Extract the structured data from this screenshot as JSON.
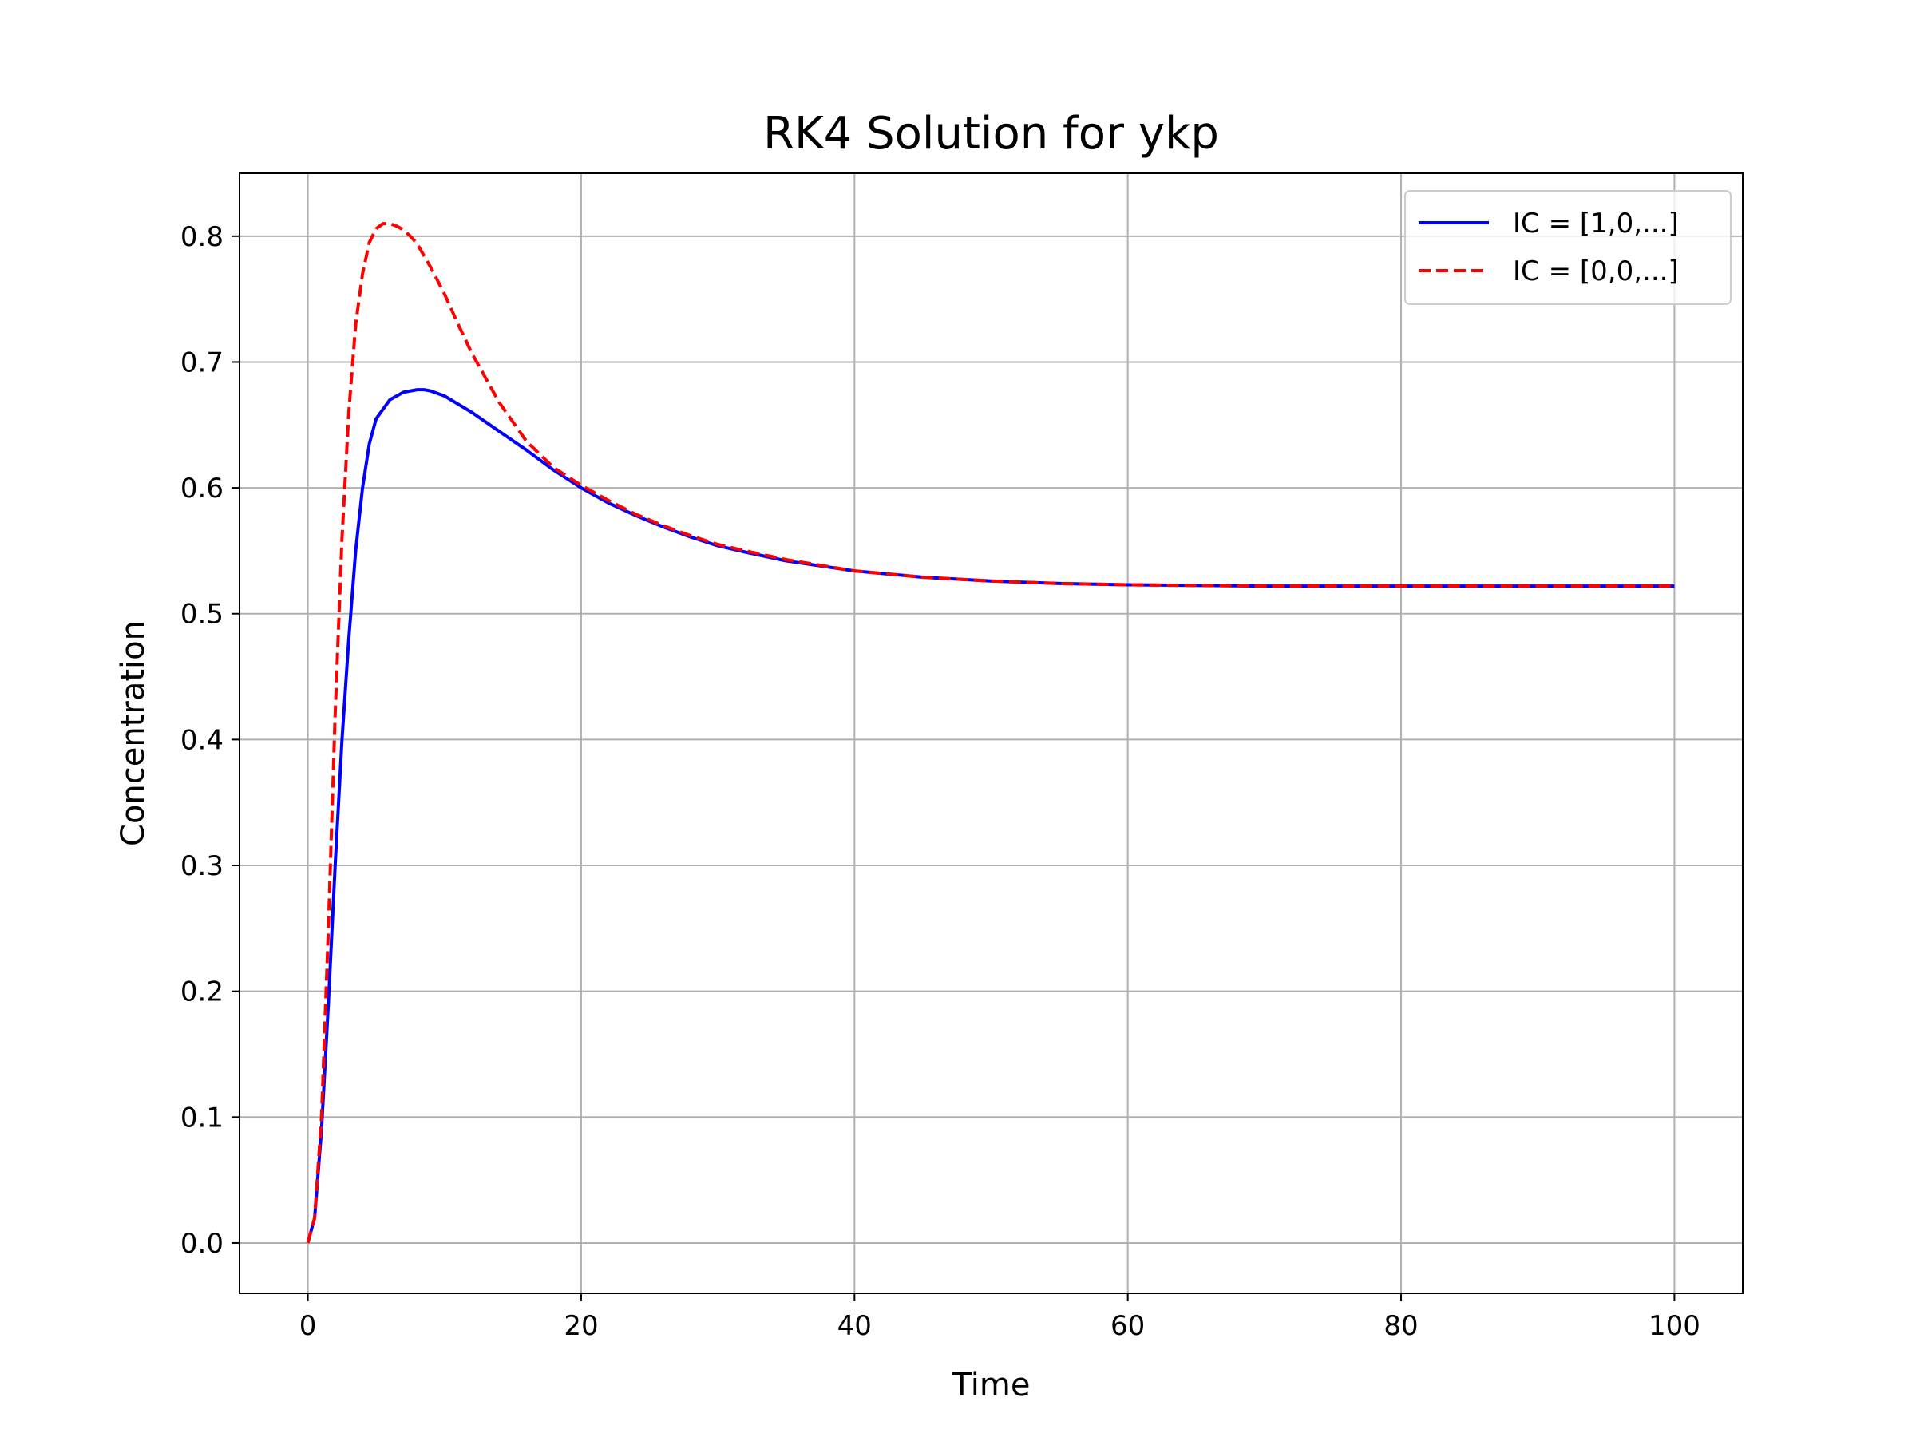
{
  "chart_data": {
    "type": "line",
    "title": "RK4 Solution for ykp",
    "xlabel": "Time",
    "ylabel": "Concentration",
    "xlim": [
      -5,
      105
    ],
    "ylim": [
      -0.04,
      0.85
    ],
    "xticks": [
      0,
      20,
      40,
      60,
      80,
      100
    ],
    "xtick_labels": [
      "0",
      "20",
      "40",
      "60",
      "80",
      "100"
    ],
    "yticks": [
      0.0,
      0.1,
      0.2,
      0.3,
      0.4,
      0.5,
      0.6,
      0.7,
      0.8
    ],
    "ytick_labels": [
      "0.0",
      "0.1",
      "0.2",
      "0.3",
      "0.4",
      "0.5",
      "0.6",
      "0.7",
      "0.8"
    ],
    "grid": true,
    "legend_position": "top-right",
    "series": [
      {
        "name": "IC = [1,0,...]",
        "color": "#0000ff",
        "style": "solid",
        "x": [
          0,
          0.5,
          1,
          1.5,
          2,
          2.5,
          3,
          3.5,
          4,
          4.5,
          5,
          6,
          7,
          8,
          8.5,
          9,
          10,
          12,
          14,
          16,
          18,
          20,
          22,
          24,
          26,
          28,
          30,
          32,
          35,
          40,
          45,
          50,
          55,
          60,
          70,
          80,
          90,
          100
        ],
        "y": [
          0.0,
          0.02,
          0.09,
          0.19,
          0.3,
          0.4,
          0.48,
          0.55,
          0.6,
          0.635,
          0.655,
          0.67,
          0.676,
          0.678,
          0.678,
          0.677,
          0.673,
          0.66,
          0.645,
          0.63,
          0.614,
          0.6,
          0.588,
          0.578,
          0.569,
          0.561,
          0.554,
          0.549,
          0.542,
          0.534,
          0.529,
          0.526,
          0.524,
          0.523,
          0.522,
          0.522,
          0.522,
          0.522
        ]
      },
      {
        "name": "IC = [0,0,...]",
        "color": "#ff0000",
        "style": "dashed",
        "x": [
          0,
          0.5,
          1,
          1.5,
          2,
          2.5,
          3,
          3.5,
          4,
          4.5,
          5,
          5.5,
          6,
          6.5,
          7,
          7.5,
          8,
          9,
          10,
          11,
          12,
          14,
          16,
          18,
          20,
          22,
          24,
          26,
          28,
          30,
          32,
          35,
          40,
          45,
          50,
          55,
          60,
          70,
          80,
          90,
          100
        ],
        "y": [
          0.0,
          0.02,
          0.1,
          0.25,
          0.42,
          0.56,
          0.66,
          0.73,
          0.77,
          0.795,
          0.806,
          0.81,
          0.81,
          0.808,
          0.805,
          0.8,
          0.794,
          0.775,
          0.754,
          0.73,
          0.707,
          0.668,
          0.637,
          0.616,
          0.602,
          0.59,
          0.579,
          0.57,
          0.562,
          0.555,
          0.55,
          0.543,
          0.534,
          0.529,
          0.526,
          0.524,
          0.523,
          0.522,
          0.522,
          0.522,
          0.522
        ]
      }
    ]
  }
}
